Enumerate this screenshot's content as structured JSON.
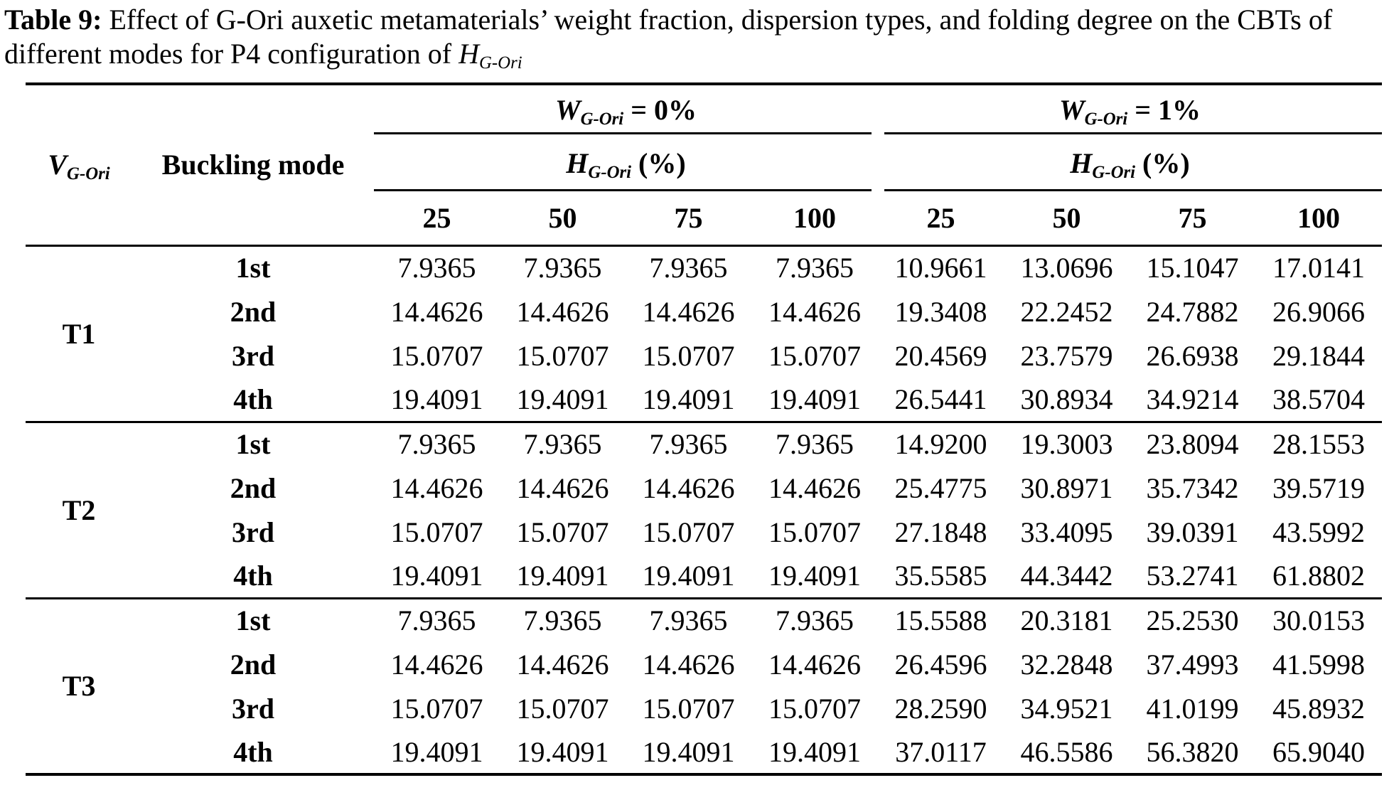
{
  "colors": {
    "text": "#000000",
    "background": "#ffffff"
  },
  "caption": {
    "label": "Table 9:",
    "body": " Effect of G-Ori auxetic metamaterials’ weight fraction, dispersion types, and folding degree on the CBTs of different modes for P4 configuration of ",
    "math_tail": {
      "base": "H",
      "sub": "G-Ori"
    }
  },
  "table": {
    "v_header": {
      "base": "V",
      "sub": "G-Ori"
    },
    "mode_header": "Buckling mode",
    "group_headers": [
      {
        "base": "W",
        "sub": "G-Ori",
        "suffix": " = 0%"
      },
      {
        "base": "W",
        "sub": "G-Ori",
        "suffix": " = 1%"
      }
    ],
    "subgroup_headers": [
      {
        "base": "H",
        "sub": "G-Ori",
        "suffix": " (%)"
      },
      {
        "base": "H",
        "sub": "G-Ori",
        "suffix": " (%)"
      }
    ],
    "col_headers": [
      "25",
      "50",
      "75",
      "100",
      "25",
      "50",
      "75",
      "100"
    ],
    "row_groups": [
      {
        "label": "T1",
        "rows": [
          {
            "mode": "1st",
            "values": [
              "7.9365",
              "7.9365",
              "7.9365",
              "7.9365",
              "10.9661",
              "13.0696",
              "15.1047",
              "17.0141"
            ]
          },
          {
            "mode": "2nd",
            "values": [
              "14.4626",
              "14.4626",
              "14.4626",
              "14.4626",
              "19.3408",
              "22.2452",
              "24.7882",
              "26.9066"
            ]
          },
          {
            "mode": "3rd",
            "values": [
              "15.0707",
              "15.0707",
              "15.0707",
              "15.0707",
              "20.4569",
              "23.7579",
              "26.6938",
              "29.1844"
            ]
          },
          {
            "mode": "4th",
            "values": [
              "19.4091",
              "19.4091",
              "19.4091",
              "19.4091",
              "26.5441",
              "30.8934",
              "34.9214",
              "38.5704"
            ]
          }
        ]
      },
      {
        "label": "T2",
        "rows": [
          {
            "mode": "1st",
            "values": [
              "7.9365",
              "7.9365",
              "7.9365",
              "7.9365",
              "14.9200",
              "19.3003",
              "23.8094",
              "28.1553"
            ]
          },
          {
            "mode": "2nd",
            "values": [
              "14.4626",
              "14.4626",
              "14.4626",
              "14.4626",
              "25.4775",
              "30.8971",
              "35.7342",
              "39.5719"
            ]
          },
          {
            "mode": "3rd",
            "values": [
              "15.0707",
              "15.0707",
              "15.0707",
              "15.0707",
              "27.1848",
              "33.4095",
              "39.0391",
              "43.5992"
            ]
          },
          {
            "mode": "4th",
            "values": [
              "19.4091",
              "19.4091",
              "19.4091",
              "19.4091",
              "35.5585",
              "44.3442",
              "53.2741",
              "61.8802"
            ]
          }
        ]
      },
      {
        "label": "T3",
        "rows": [
          {
            "mode": "1st",
            "values": [
              "7.9365",
              "7.9365",
              "7.9365",
              "7.9365",
              "15.5588",
              "20.3181",
              "25.2530",
              "30.0153"
            ]
          },
          {
            "mode": "2nd",
            "values": [
              "14.4626",
              "14.4626",
              "14.4626",
              "14.4626",
              "26.4596",
              "32.2848",
              "37.4993",
              "41.5998"
            ]
          },
          {
            "mode": "3rd",
            "values": [
              "15.0707",
              "15.0707",
              "15.0707",
              "15.0707",
              "28.2590",
              "34.9521",
              "41.0199",
              "45.8932"
            ]
          },
          {
            "mode": "4th",
            "values": [
              "19.4091",
              "19.4091",
              "19.4091",
              "19.4091",
              "37.0117",
              "46.5586",
              "56.3820",
              "65.9040"
            ]
          }
        ]
      }
    ]
  }
}
